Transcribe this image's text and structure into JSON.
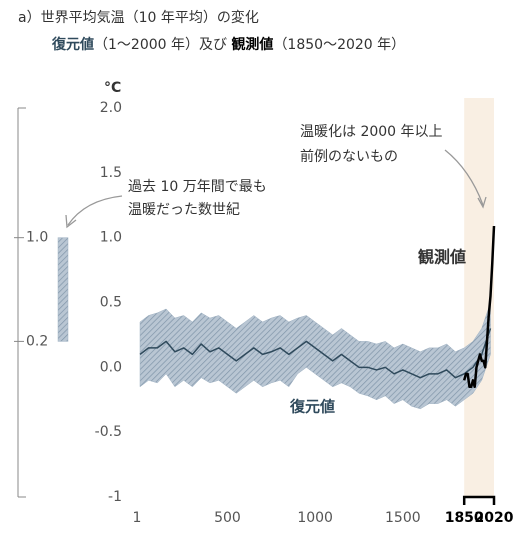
{
  "chart_data": {
    "type": "line",
    "title": "a）世界平均気温（10 年平均）の変化",
    "subtitle": [
      "復元値",
      "（1～2000 年）及び ",
      "観測値",
      "（1850～2020 年）"
    ],
    "y_unit": "°C",
    "xlim": [
      1,
      2020
    ],
    "ylim": [
      -1,
      2
    ],
    "xticks": [
      1,
      500,
      1000,
      1500,
      1850,
      2020
    ],
    "yticks": [
      {
        "value": 2,
        "label": "2.0"
      },
      1.5,
      {
        "value": 1,
        "label": "1.0"
      },
      0.5,
      {
        "value": 0,
        "label": "0.0"
      },
      -0.5,
      -1
    ],
    "highlight_x": [
      1850,
      2020
    ],
    "highlight_color": "#f9efe3",
    "series": [
      {
        "name": "復元値",
        "color": "#2f4a5c",
        "band_color": "#9fb1c2",
        "x": [
          1,
          50,
          100,
          150,
          200,
          250,
          300,
          350,
          400,
          450,
          500,
          550,
          600,
          650,
          700,
          750,
          800,
          850,
          900,
          950,
          1000,
          1050,
          1100,
          1150,
          1200,
          1250,
          1300,
          1350,
          1400,
          1450,
          1500,
          1550,
          1600,
          1650,
          1700,
          1750,
          1800,
          1850,
          1900,
          1950,
          2000
        ],
        "values": [
          0.1,
          0.15,
          0.15,
          0.2,
          0.12,
          0.15,
          0.1,
          0.18,
          0.12,
          0.15,
          0.1,
          0.05,
          0.1,
          0.15,
          0.1,
          0.12,
          0.15,
          0.1,
          0.15,
          0.2,
          0.15,
          0.1,
          0.05,
          0.1,
          0.05,
          0,
          0,
          -0.02,
          0,
          -0.05,
          -0.02,
          -0.05,
          -0.08,
          -0.05,
          -0.05,
          -0.02,
          -0.08,
          -0.05,
          0,
          0.1,
          0.3
        ],
        "lower": [
          -0.15,
          -0.1,
          -0.12,
          -0.05,
          -0.15,
          -0.1,
          -0.15,
          -0.08,
          -0.12,
          -0.1,
          -0.15,
          -0.2,
          -0.15,
          -0.1,
          -0.15,
          -0.12,
          -0.1,
          -0.15,
          -0.05,
          0,
          -0.05,
          -0.1,
          -0.15,
          -0.12,
          -0.15,
          -0.2,
          -0.22,
          -0.25,
          -0.22,
          -0.28,
          -0.25,
          -0.3,
          -0.32,
          -0.28,
          -0.28,
          -0.25,
          -0.3,
          -0.25,
          -0.2,
          -0.1,
          0.1
        ],
        "upper": [
          0.35,
          0.4,
          0.42,
          0.45,
          0.38,
          0.4,
          0.35,
          0.42,
          0.38,
          0.4,
          0.35,
          0.3,
          0.35,
          0.4,
          0.35,
          0.38,
          0.4,
          0.35,
          0.38,
          0.4,
          0.35,
          0.3,
          0.25,
          0.3,
          0.25,
          0.2,
          0.2,
          0.18,
          0.2,
          0.15,
          0.18,
          0.15,
          0.12,
          0.15,
          0.15,
          0.18,
          0.12,
          0.15,
          0.2,
          0.3,
          0.5
        ]
      },
      {
        "name": "観測値",
        "color": "#000000",
        "x": [
          1850,
          1860,
          1870,
          1880,
          1890,
          1900,
          1910,
          1920,
          1930,
          1940,
          1950,
          1960,
          1970,
          1980,
          1990,
          2000,
          2010,
          2020
        ],
        "values": [
          -0.1,
          -0.05,
          -0.05,
          -0.15,
          -0.15,
          -0.1,
          -0.15,
          0,
          0.05,
          0.1,
          0.05,
          0.05,
          0,
          0.2,
          0.4,
          0.55,
          0.8,
          1.09
        ]
      }
    ],
    "side_range": {
      "values": [
        0.2,
        1
      ],
      "color": "#9fb1c2",
      "ticks": [
        {
          "value": 1,
          "label": "1.0"
        },
        {
          "value": 0.2,
          "label": "0.2"
        }
      ]
    },
    "annotations": [
      {
        "lines": [
          "温暖化は 2000 年以上",
          "前例のないもの"
        ]
      },
      {
        "lines": [
          "過去 10 万年間で最も",
          "温暖だった数世紀"
        ]
      }
    ]
  }
}
